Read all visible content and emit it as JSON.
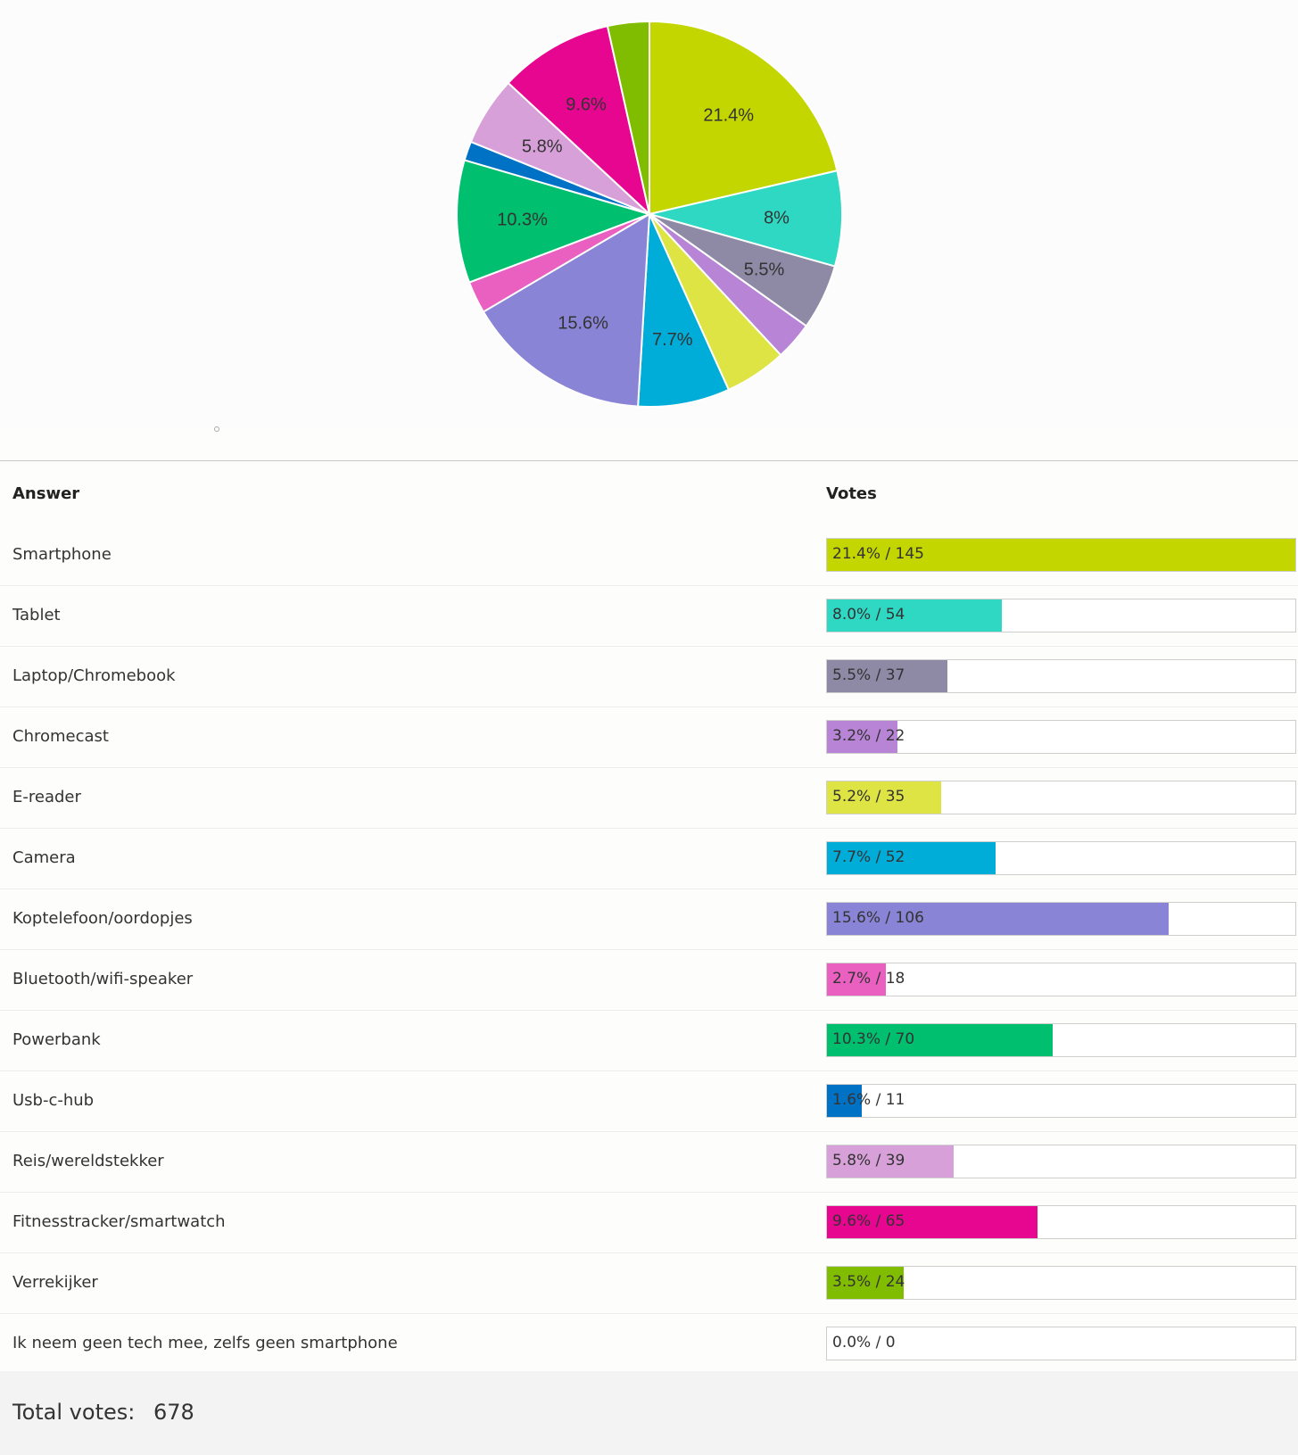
{
  "chart_data": {
    "type": "pie",
    "title": "",
    "slices": [
      {
        "label": "Smartphone",
        "percent": 21.4,
        "votes": 145,
        "color": "#c4d600",
        "pie_label": "21.4%"
      },
      {
        "label": "Tablet",
        "percent": 8.0,
        "votes": 54,
        "color": "#2ed8c3",
        "pie_label": "8%"
      },
      {
        "label": "Laptop/Chromebook",
        "percent": 5.5,
        "votes": 37,
        "color": "#8e8aa6",
        "pie_label": "5.5%"
      },
      {
        "label": "Chromecast",
        "percent": 3.2,
        "votes": 22,
        "color": "#b884d6",
        "pie_label": ""
      },
      {
        "label": "E-reader",
        "percent": 5.2,
        "votes": 35,
        "color": "#dde444",
        "pie_label": ""
      },
      {
        "label": "Camera",
        "percent": 7.7,
        "votes": 52,
        "color": "#00acd8",
        "pie_label": "7.7%"
      },
      {
        "label": "Koptelefoon/oordopjes",
        "percent": 15.6,
        "votes": 106,
        "color": "#8a84d6",
        "pie_label": "15.6%"
      },
      {
        "label": "Bluetooth/wifi-speaker",
        "percent": 2.7,
        "votes": 18,
        "color": "#ea60c0",
        "pie_label": ""
      },
      {
        "label": "Powerbank",
        "percent": 10.3,
        "votes": 70,
        "color": "#00bf6f",
        "pie_label": "10.3%"
      },
      {
        "label": "Usb-c-hub",
        "percent": 1.6,
        "votes": 11,
        "color": "#0072c6",
        "pie_label": ""
      },
      {
        "label": "Reis/wereldstekker",
        "percent": 5.8,
        "votes": 39,
        "color": "#d8a0d8",
        "pie_label": "5.8%"
      },
      {
        "label": "Fitnesstracker/smartwatch",
        "percent": 9.6,
        "votes": 65,
        "color": "#e6068f",
        "pie_label": "9.6%"
      },
      {
        "label": "Verrekijker",
        "percent": 3.5,
        "votes": 24,
        "color": "#80bc00",
        "pie_label": ""
      },
      {
        "label": "Ik neem geen tech mee, zelfs geen smartphone",
        "percent": 0.0,
        "votes": 0,
        "color": "#ffffff",
        "pie_label": ""
      }
    ]
  },
  "table": {
    "header_answer": "Answer",
    "header_votes": "Votes",
    "rows": [
      {
        "answer": "Smartphone",
        "bar_text": "21.4% / 145"
      },
      {
        "answer": "Tablet",
        "bar_text": "8.0% / 54"
      },
      {
        "answer": "Laptop/Chromebook",
        "bar_text": "5.5% / 37"
      },
      {
        "answer": "Chromecast",
        "bar_text": "3.2% / 22"
      },
      {
        "answer": "E-reader",
        "bar_text": "5.2% / 35"
      },
      {
        "answer": "Camera",
        "bar_text": "7.7% / 52"
      },
      {
        "answer": "Koptelefoon/oordopjes",
        "bar_text": "15.6% / 106"
      },
      {
        "answer": "Bluetooth/wifi-speaker",
        "bar_text": "2.7% / 18"
      },
      {
        "answer": "Powerbank",
        "bar_text": "10.3% / 70"
      },
      {
        "answer": "Usb-c-hub",
        "bar_text": "1.6% / 11"
      },
      {
        "answer": "Reis/wereldstekker",
        "bar_text": "5.8% / 39"
      },
      {
        "answer": "Fitnesstracker/smartwatch",
        "bar_text": "9.6% / 65"
      },
      {
        "answer": "Verrekijker",
        "bar_text": "3.5% / 24"
      },
      {
        "answer": "Ik neem geen tech mee, zelfs geen smartphone",
        "bar_text": "0.0% / 0"
      }
    ]
  },
  "footer": {
    "total_label": "Total votes:",
    "total_value": "678"
  }
}
